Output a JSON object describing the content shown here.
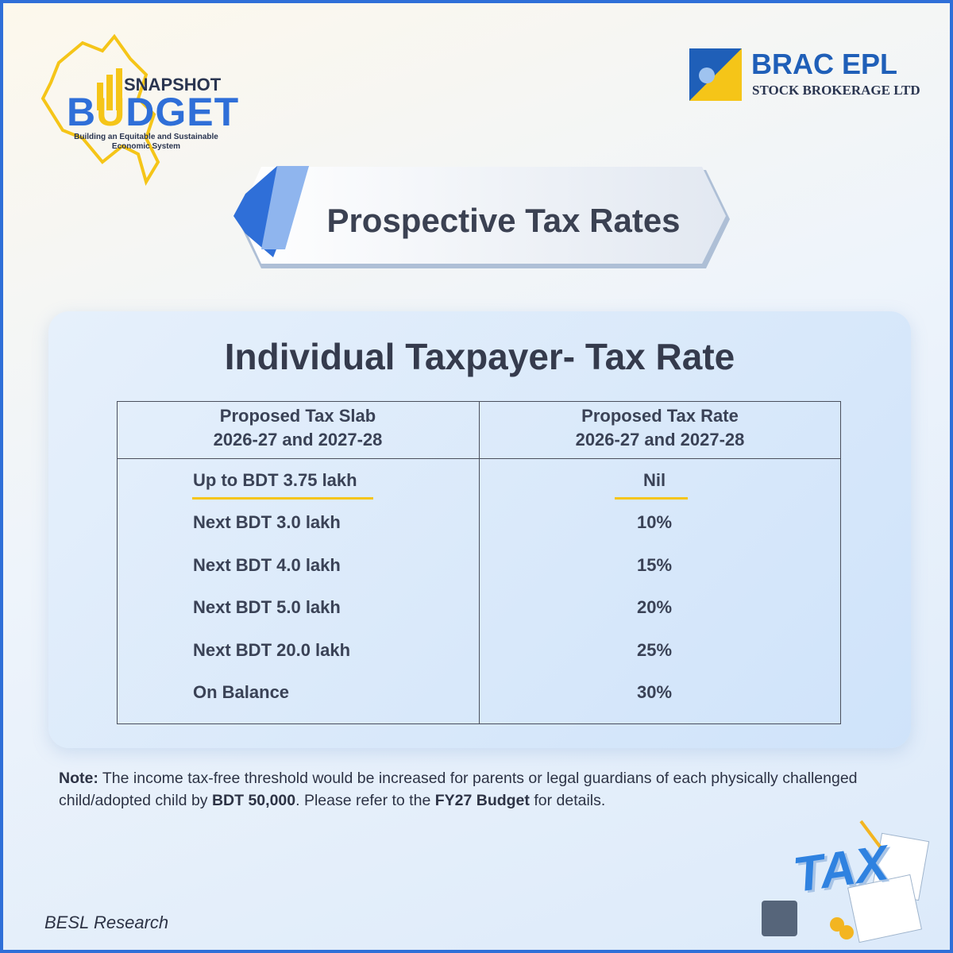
{
  "logo": {
    "top": "SNAPSHOT",
    "word_start": "B",
    "word_accent": "U",
    "word_end": "DGET",
    "tagline": [
      "Building an Equitable and Sustainable",
      "Economic System"
    ]
  },
  "brand": {
    "name": "BRAC EPL",
    "subtitle": "STOCK BROKERAGE LTD"
  },
  "banner": {
    "title": "Prospective Tax Rates"
  },
  "card": {
    "title": "Individual Taxpayer- Tax Rate"
  },
  "table": {
    "headers": [
      [
        "Proposed Tax Slab",
        "2026-27 and 2027-28"
      ],
      [
        "Proposed Tax Rate",
        "2026-27 and 2027-28"
      ]
    ],
    "rows": [
      [
        "Up to BDT 3.75 lakh",
        "Nil"
      ],
      [
        "Next BDT 3.0 lakh",
        "10%"
      ],
      [
        "Next BDT 4.0 lakh",
        "15%"
      ],
      [
        "Next BDT 5.0 lakh",
        "20%"
      ],
      [
        "Next BDT 20.0 lakh",
        "25%"
      ],
      [
        "On Balance",
        "30%"
      ]
    ]
  },
  "note": {
    "label": "Note:",
    "parts": [
      " The income tax-free threshold would be increased for parents or legal guardians of each physically challenged child/adopted child by ",
      "BDT 50,000",
      ". Please refer to the ",
      "FY27 Budget",
      " for details."
    ]
  },
  "illustration": {
    "label": "TAX"
  },
  "footer": {
    "source": "BESL Research"
  }
}
